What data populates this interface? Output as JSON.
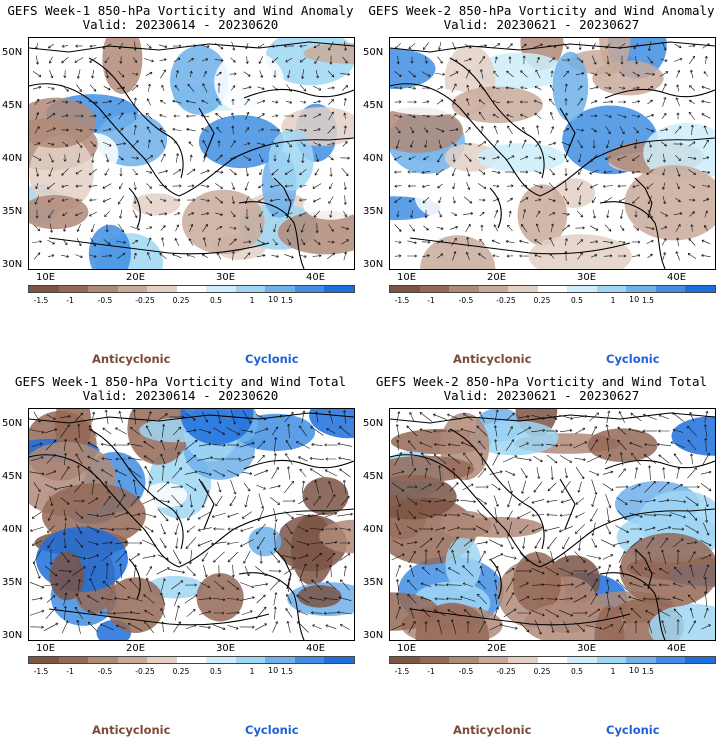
{
  "colors": {
    "anticyclonic": "#7a4a36",
    "cyclonic": "#2060d8",
    "scale": [
      "#7b5444",
      "#946956",
      "#b08a78",
      "#c9aa9a",
      "#e3d0c5",
      "#ffffff",
      "#cdeefa",
      "#9fd6f3",
      "#6fb1ea",
      "#3f8ee3",
      "#1d6fdc"
    ]
  },
  "lat_labels": [
    "50N",
    "45N",
    "40N",
    "35N",
    "30N"
  ],
  "lon_labels": [
    "10E",
    "20E",
    "30E",
    "40E"
  ],
  "colorbar": {
    "ticks": [
      "-1.5",
      "-1",
      "-0.5",
      "-0.25",
      "0.25",
      "0.5",
      "1",
      "1.5"
    ],
    "unit": "10"
  },
  "legend": {
    "anticyclonic": "Anticyclonic",
    "cyclonic": "Cyclonic"
  },
  "panels": [
    {
      "title": "GEFS Week-1 850-hPa Vorticity and Wind Anomaly",
      "valid": "Valid: 20230614 - 20230620"
    },
    {
      "title": "GEFS Week-2 850-hPa Vorticity and Wind Anomaly",
      "valid": "Valid: 20230621 - 20230627"
    },
    {
      "title": "GEFS Week-1 850-hPa Vorticity and Wind Total",
      "valid": "Valid: 20230614 - 20230620"
    },
    {
      "title": "GEFS Week-2 850-hPa Vorticity and Wind Total",
      "valid": "Valid: 20230621 - 20230627"
    }
  ]
}
